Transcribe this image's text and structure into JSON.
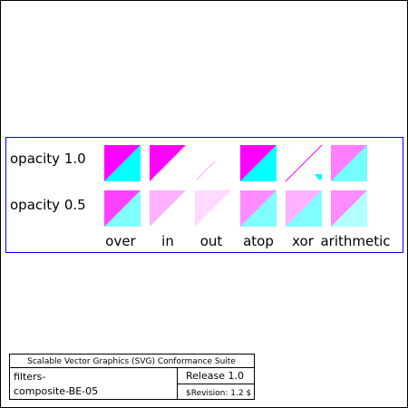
{
  "colors": {
    "page_background": "#ffffff",
    "frame_stroke": "#000000",
    "demo_box_stroke": "#0000ff",
    "magenta": "#ff00ff",
    "cyan": "#00ffff"
  },
  "demo": {
    "row_labels": [
      "opacity 1.0",
      "opacity 0.5"
    ],
    "row_opacities": [
      1.0,
      0.5
    ],
    "operators": [
      {
        "label": "over",
        "mode": "over"
      },
      {
        "label": "in",
        "mode": "in"
      },
      {
        "label": "out",
        "mode": "out"
      },
      {
        "label": "atop",
        "mode": "atop"
      },
      {
        "label": "xor",
        "mode": "xor"
      },
      {
        "label": "arithmetic",
        "mode": "arithmetic"
      }
    ]
  },
  "footer": {
    "suite_title": "Scalable Vector Graphics (SVG) Conformance Suite",
    "test_name_line1": "filters-",
    "test_name_line2": "composite-BE-05",
    "release": "Release 1.0",
    "revision": "$Revision: 1.2 $"
  }
}
